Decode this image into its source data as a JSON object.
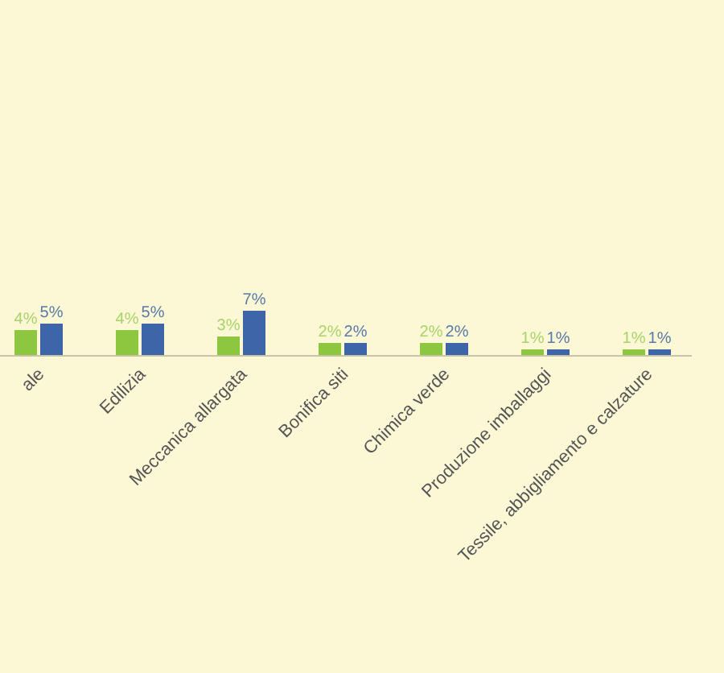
{
  "chart_data": {
    "type": "bar",
    "categories": [
      "ale",
      "Edilizia",
      "Meccanica allargata",
      "Bonifica siti",
      "Chimica verde",
      "Produzione imballaggi",
      "Tessile, abbigliamento e calzature"
    ],
    "series": [
      {
        "color": "#8dc63f",
        "values": [
          4,
          4,
          3,
          2,
          2,
          1,
          1
        ],
        "value_labels": [
          "4%",
          "4%",
          "3%",
          "2%",
          "2%",
          "1%",
          "1%"
        ]
      },
      {
        "color": "#3d65a8",
        "values": [
          5,
          5,
          7,
          2,
          2,
          1,
          1
        ],
        "value_labels": [
          "5%",
          "5%",
          "7%",
          "2%",
          "2%",
          "1%",
          "1%"
        ]
      }
    ]
  }
}
